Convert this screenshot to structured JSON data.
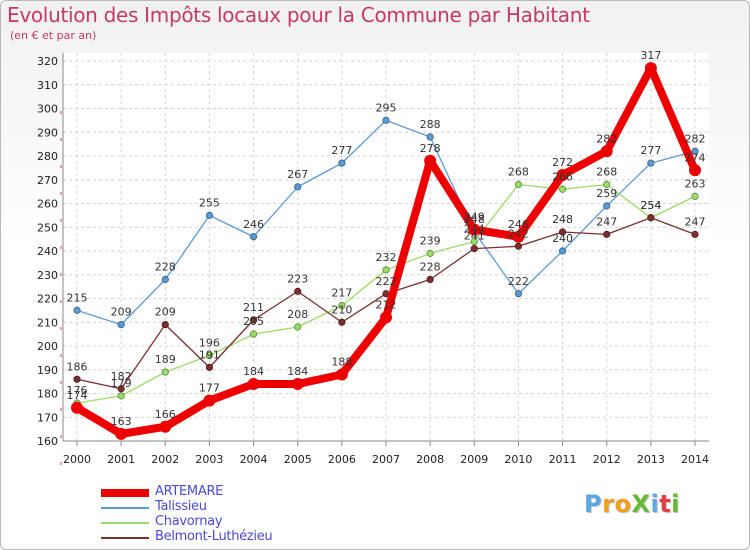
{
  "title": "Evolution des Impôts locaux pour la Commune par Habitant",
  "subtitle": "(en € et par an)",
  "logo": {
    "text": "ProXiti",
    "letters": [
      {
        "ch": "P",
        "color": "#5aa9e6"
      },
      {
        "ch": "r",
        "color": "#f0a020"
      },
      {
        "ch": "o",
        "color": "#f0a020"
      },
      {
        "ch": "X",
        "color": "#66bb33"
      },
      {
        "ch": "i",
        "color": "#5aa9e6"
      },
      {
        "ch": "t",
        "color": "#e04040"
      },
      {
        "ch": "i",
        "color": "#66bb33"
      }
    ]
  },
  "chart_data": {
    "type": "line",
    "categories": [
      "2000",
      "2001",
      "2002",
      "2003",
      "2004",
      "2005",
      "2006",
      "2007",
      "2008",
      "2009",
      "2010",
      "2011",
      "2012",
      "2013",
      "2014"
    ],
    "ylim": [
      160,
      320
    ],
    "yticks": [
      160,
      170,
      180,
      190,
      200,
      210,
      220,
      230,
      240,
      250,
      260,
      270,
      280,
      290,
      300,
      310,
      320
    ],
    "grid": true,
    "legend_position": "bottom-left",
    "series": [
      {
        "name": "ARTEMARE",
        "color": "#ee0000",
        "values": [
          174,
          163,
          166,
          177,
          184,
          184,
          188,
          212,
          278,
          249,
          246,
          272,
          282,
          317,
          274
        ]
      },
      {
        "name": "Talissieu",
        "color": "#5b9bd5",
        "values": [
          215,
          209,
          228,
          255,
          246,
          267,
          277,
          295,
          288,
          248,
          222,
          240,
          259,
          277,
          282
        ]
      },
      {
        "name": "Chavornay",
        "color": "#99dd66",
        "values": [
          176,
          179,
          189,
          196,
          205,
          208,
          217,
          232,
          239,
          244,
          268,
          266,
          268,
          254,
          263
        ]
      },
      {
        "name": "Belmont-Luthézieu",
        "color": "#7b2f2f",
        "values": [
          186,
          182,
          209,
          191,
          211,
          223,
          210,
          222,
          228,
          241,
          242,
          248,
          247,
          254,
          247
        ]
      }
    ]
  }
}
